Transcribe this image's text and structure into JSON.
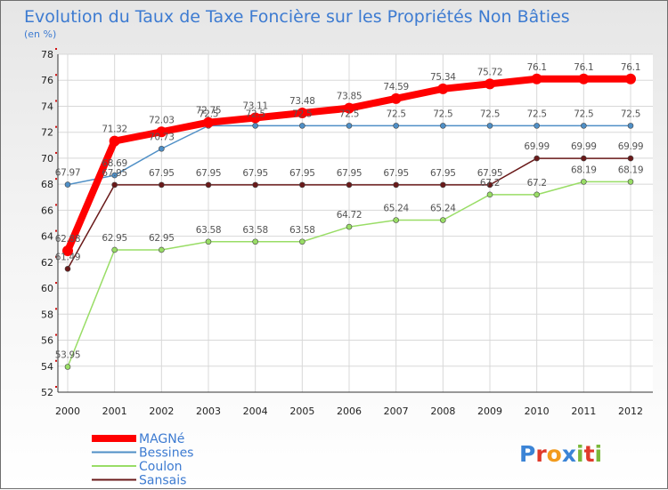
{
  "chart_data": {
    "type": "line",
    "title": "Evolution du Taux de Taxe Foncière sur les Propriétés Non Bâties",
    "subtitle": "(en %)",
    "ylim": [
      52,
      78
    ],
    "yticks": [
      "52",
      "54",
      "56",
      "58",
      "60",
      "62",
      "64",
      "66",
      "68",
      "70",
      "72",
      "74",
      "76",
      "78"
    ],
    "x": [
      "2000",
      "2001",
      "2002",
      "2003",
      "2004",
      "2005",
      "2006",
      "2007",
      "2008",
      "2009",
      "2010",
      "2011",
      "2012"
    ],
    "grid": true,
    "legend": "bottom-left",
    "series": [
      {
        "name": "MAGNé",
        "color": "#ff0000",
        "values": [
          62.88,
          71.32,
          72.03,
          72.75,
          73.11,
          73.48,
          73.85,
          74.59,
          75.34,
          75.72,
          76.1,
          76.1,
          76.1
        ],
        "labels": [
          "62.88",
          "71.32",
          "72.03",
          "72.75",
          "73.11",
          "73.48",
          "73.85",
          "74.59",
          "75.34",
          "75.72",
          "76.1",
          "76.1",
          "76.1"
        ]
      },
      {
        "name": "Bessines",
        "color": "#4f8fc6",
        "values": [
          67.97,
          68.69,
          70.73,
          72.5,
          72.5,
          72.5,
          72.5,
          72.5,
          72.5,
          72.5,
          72.5,
          72.5,
          72.5
        ],
        "labels": [
          "67.97",
          "68.69",
          "70.73",
          "72.5",
          "72.5",
          "72.5",
          "72.5",
          "72.5",
          "72.5",
          "72.5",
          "72.5",
          "72.5",
          "72.5"
        ]
      },
      {
        "name": "Coulon",
        "color": "#99dd66",
        "values": [
          53.95,
          62.95,
          62.95,
          63.58,
          63.58,
          63.58,
          64.72,
          65.24,
          65.24,
          67.2,
          67.2,
          68.19,
          68.19
        ],
        "labels": [
          "53.95",
          "62.95",
          "62.95",
          "63.58",
          "63.58",
          "63.58",
          "64.72",
          "65.24",
          "65.24",
          "67.2",
          "67.2",
          "68.19",
          "68.19"
        ]
      },
      {
        "name": "Sansais",
        "color": "#6a1a1a",
        "values": [
          61.49,
          67.95,
          67.95,
          67.95,
          67.95,
          67.95,
          67.95,
          67.95,
          67.95,
          67.95,
          69.99,
          69.99,
          69.99
        ],
        "labels": [
          "61.49",
          "67.95",
          "67.95",
          "67.95",
          "67.95",
          "67.95",
          "67.95",
          "67.95",
          "67.95",
          "67.95",
          "69.99",
          "69.99",
          "69.99"
        ]
      }
    ]
  },
  "logo": {
    "text": "Proxiti",
    "letters": [
      "P",
      "r",
      "o",
      "x",
      "i",
      "t",
      "i"
    ],
    "colors": [
      "#3b84d6",
      "#e03a2b",
      "#f29b1d",
      "#3b84d6",
      "#7ab83a",
      "#e03a2b",
      "#7ab83a"
    ]
  }
}
